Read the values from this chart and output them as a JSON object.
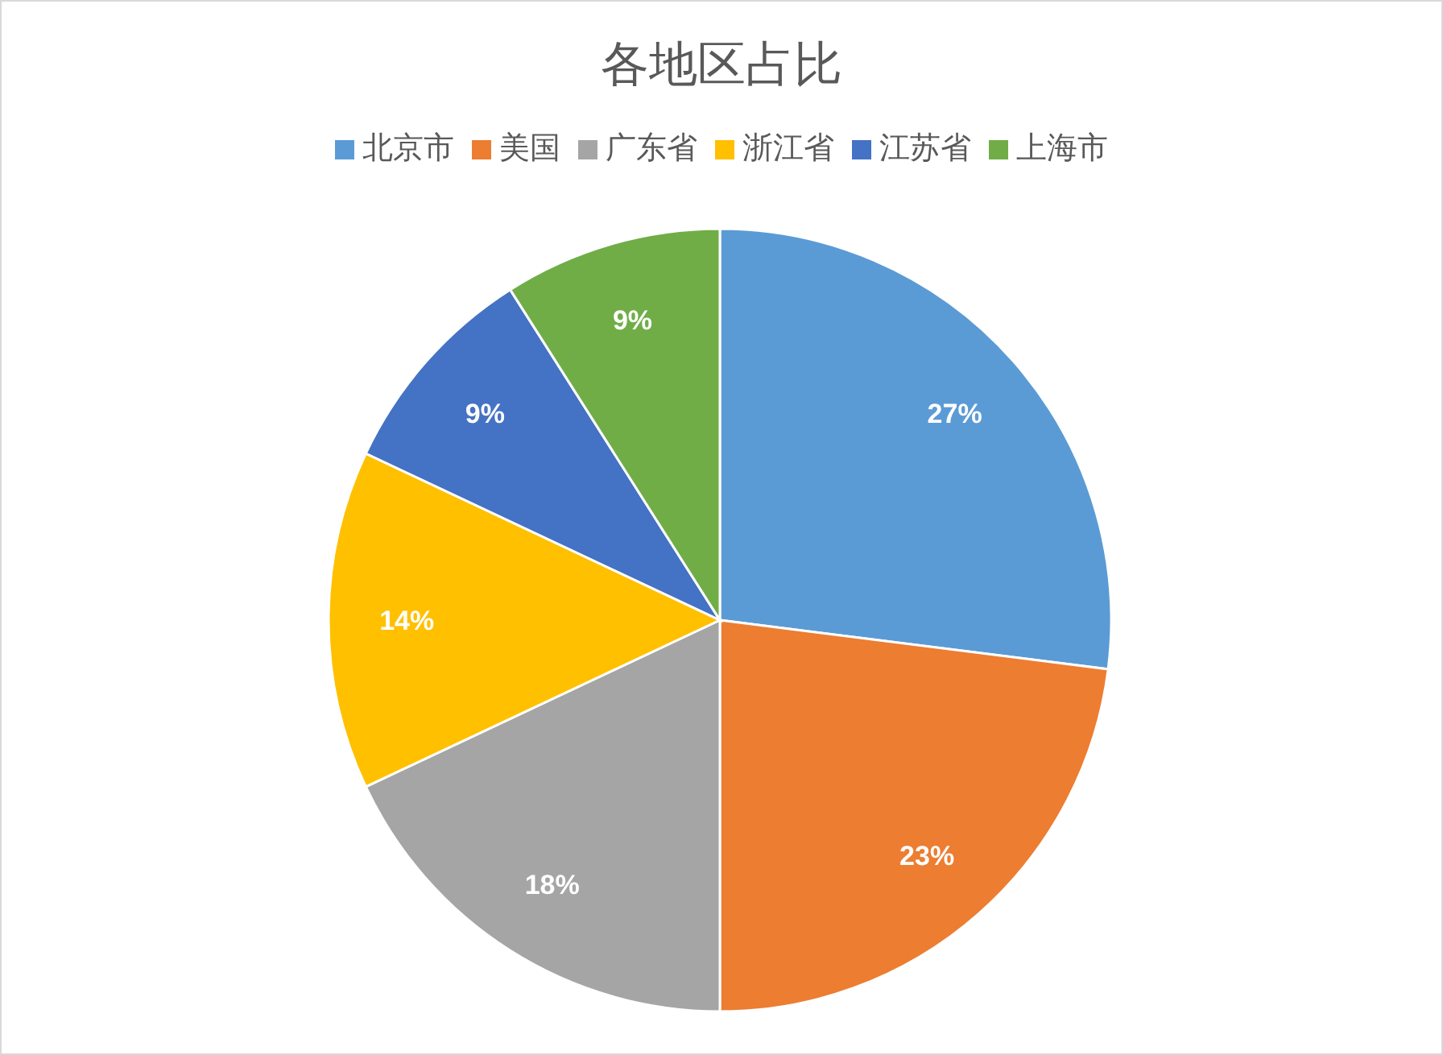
{
  "chart_data": {
    "type": "pie",
    "title": "各地区占比",
    "categories": [
      "北京市",
      "美国",
      "广东省",
      "浙江省",
      "江苏省",
      "上海市"
    ],
    "values": [
      27,
      23,
      18,
      14,
      9,
      9
    ],
    "colors": [
      "#5b9bd5",
      "#ed7d31",
      "#a5a5a5",
      "#ffc000",
      "#4472c4",
      "#70ad47"
    ],
    "value_labels": [
      "27%",
      "23%",
      "18%",
      "14%",
      "9%",
      "9%"
    ],
    "legend": "top"
  }
}
